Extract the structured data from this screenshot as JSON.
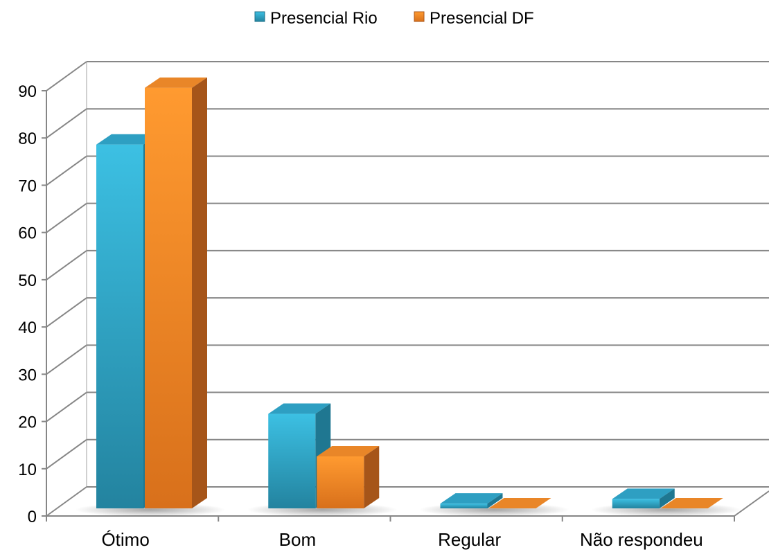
{
  "chart_data": {
    "type": "bar",
    "variant": "3d-clustered-column",
    "categories": [
      "Ótimo",
      "Bom",
      "Regular",
      "Não respondeu"
    ],
    "series": [
      {
        "name": "Presencial Rio",
        "color": "#2fa3c6",
        "values": [
          77,
          20,
          1,
          2
        ]
      },
      {
        "name": "Presencial DF",
        "color": "#ee8421",
        "values": [
          89,
          11,
          0,
          0
        ]
      }
    ],
    "yticks": [
      "0",
      "10",
      "20",
      "30",
      "40",
      "50",
      "60",
      "70",
      "80",
      "90"
    ],
    "ylim": [
      0,
      90
    ],
    "grid": true,
    "legend_position": "top",
    "title": "",
    "xlabel": "",
    "ylabel": ""
  }
}
